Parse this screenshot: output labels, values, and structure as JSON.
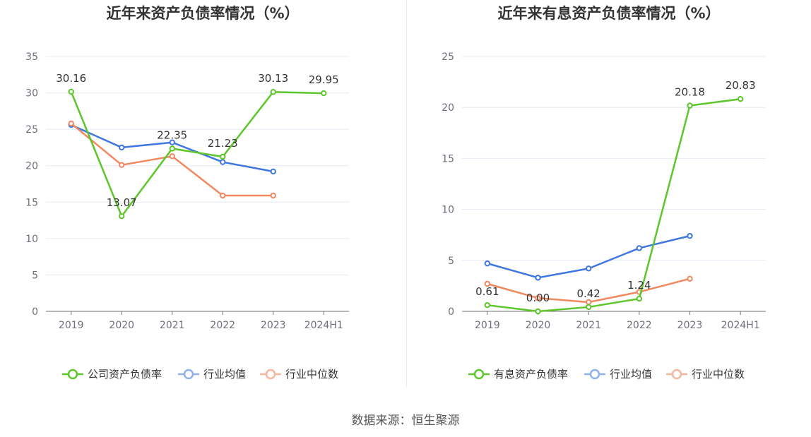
{
  "source_note": "数据来源：恒生聚源",
  "colors": {
    "company": "#5cc62b",
    "avg": "#3f77e0",
    "median": "#f2885f",
    "legend_avg": "#8fb1ee",
    "legend_median": "#f6b69e"
  },
  "chart_data": [
    {
      "type": "line",
      "title": "近年来资产负债率情况（%）",
      "categories": [
        "2019",
        "2020",
        "2021",
        "2022",
        "2023",
        "2024H1"
      ],
      "ylim": [
        0,
        35
      ],
      "yticks": [
        "0",
        "5",
        "10",
        "15",
        "20",
        "25",
        "30",
        "35"
      ],
      "grid": true,
      "legend_position": "bottom",
      "series": [
        {
          "name": "公司资产负债率",
          "color": "#5cc62b",
          "values": [
            30.16,
            13.07,
            22.35,
            21.23,
            30.13,
            29.95
          ],
          "labels": [
            "30.16",
            "13.07",
            "22.35",
            "21.23",
            "30.13",
            "29.95"
          ]
        },
        {
          "name": "行业均值",
          "color": "#3f77e0",
          "values": [
            25.6,
            22.5,
            23.2,
            20.5,
            19.2,
            null
          ]
        },
        {
          "name": "行业中位数",
          "color": "#f2885f",
          "values": [
            25.8,
            20.1,
            21.3,
            15.9,
            15.9,
            null
          ]
        }
      ]
    },
    {
      "type": "line",
      "title": "近年来有息资产负债率情况（%）",
      "categories": [
        "2019",
        "2020",
        "2021",
        "2022",
        "2023",
        "2024H1"
      ],
      "ylim": [
        0,
        25
      ],
      "yticks": [
        "0",
        "5",
        "10",
        "15",
        "20",
        "25"
      ],
      "grid": true,
      "legend_position": "bottom",
      "series": [
        {
          "name": "有息资产负债率",
          "color": "#5cc62b",
          "values": [
            0.61,
            0.0,
            0.42,
            1.24,
            20.18,
            20.83
          ],
          "labels": [
            "0.61",
            "0.00",
            "0.42",
            "1.24",
            "20.18",
            "20.83"
          ]
        },
        {
          "name": "行业均值",
          "color": "#3f77e0",
          "values": [
            4.7,
            3.3,
            4.2,
            6.2,
            7.4,
            null
          ]
        },
        {
          "name": "行业中位数",
          "color": "#f2885f",
          "values": [
            2.7,
            1.3,
            0.9,
            1.9,
            3.2,
            null
          ]
        }
      ]
    }
  ]
}
